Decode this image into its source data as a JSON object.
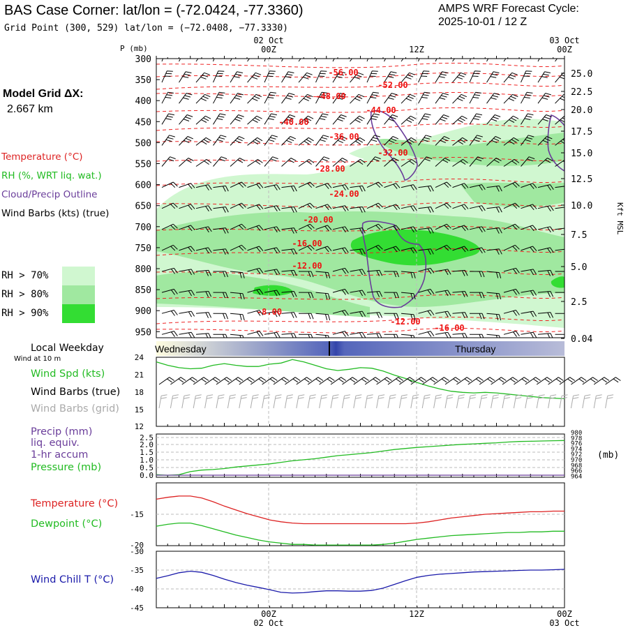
{
  "header": {
    "title": "BAS Case Corner:  lat/lon = (-72.0424, -77.3360)",
    "grid_point": "Grid Point (300, 529) lat/lon = (−72.0408, −77.3330)",
    "cycle_label": "AMPS WRF Forecast Cycle:",
    "cycle_value": "2025-10-01 / 12  Z",
    "model_grid_label": "Model Grid ΔX:",
    "model_grid_value": "2.667 km"
  },
  "time_axis": {
    "top_dates": [
      "02 Oct",
      "03 Oct"
    ],
    "bottom_dates": [
      "02 Oct",
      "03 Oct"
    ],
    "ticks": [
      "00Z",
      "12Z",
      "00Z"
    ]
  },
  "legend": {
    "temperature": "Temperature (°C)",
    "rh": "RH (%, WRT liq. wat.)",
    "cloud": "Cloud/Precip Outline",
    "wind_barbs": "Wind Barbs (kts) (true)",
    "rh_70": "RH > 70%",
    "rh_80": "RH > 80%",
    "rh_90": "RH > 90%",
    "rh_colors": [
      "#d0f7d0",
      "#a0e8a0",
      "#33dd33"
    ]
  },
  "weekday": {
    "label": "Local Weekday",
    "wind_note": "Wind at 10 m",
    "day1": "Wednesday",
    "day2": "Thursday"
  },
  "panel_labels": {
    "wind_spd": "Wind Spd (kts)",
    "barbs_true": "Wind Barbs (true)",
    "barbs_grid": "Wind Barbs (grid)",
    "precip": "Precip (mm)",
    "liq": "liq. equiv.",
    "accum": "1-hr accum",
    "pressure": "Pressure (mb)",
    "pressure_unit": "(mb)",
    "temperature": "Temperature (°C)",
    "dewpoint": "Dewpoint (°C)",
    "windchill": "Wind Chill T (°C)"
  },
  "colors": {
    "temperature": "#dd2222",
    "rh_green": "#22bb22",
    "cloud": "#6a3d9a",
    "windchill": "#1a1aaa",
    "grid_label": "#aaaaaa"
  },
  "chart_data": [
    {
      "type": "contour",
      "name": "cross_section",
      "y_axis_label": "P (mb)",
      "pressure_ticks": [
        "300",
        "350",
        "400",
        "450",
        "500",
        "550",
        "600",
        "650",
        "700",
        "750",
        "800",
        "850",
        "900",
        "950"
      ],
      "height_axis_label": "Kft MSL",
      "height_ticks": [
        "25.0",
        "22.5",
        "20.0",
        "17.5",
        "15.0",
        "12.5",
        "10.0",
        "7.5",
        "5.0",
        "2.5",
        "0.04"
      ],
      "temperature_contour_labels": [
        "-56.00",
        "-52.00",
        "-48.00",
        "-44.00",
        "-40.00",
        "-36.00",
        "-32.00",
        "-28.00",
        "-24.00",
        "-20.00",
        "-16.00",
        "-12.00",
        "-8.00",
        "-12.00",
        "-16.00"
      ]
    },
    {
      "type": "line",
      "name": "wind_speed",
      "ylim": [
        12,
        24
      ],
      "y_ticks": [
        "24",
        "21",
        "18",
        "15",
        "12"
      ],
      "x_hours": [
        0,
        1,
        2,
        3,
        4,
        5,
        6,
        7,
        8,
        9,
        10,
        11,
        12,
        13,
        14,
        15,
        16,
        17,
        18,
        19,
        20,
        21,
        22,
        23,
        24,
        25,
        26,
        27,
        28,
        29,
        30,
        31,
        32,
        33,
        34,
        35,
        36
      ],
      "values": [
        23.2,
        22.6,
        22.2,
        22.0,
        22.1,
        22.6,
        22.9,
        22.6,
        22.4,
        22.4,
        22.8,
        23.0,
        23.6,
        23.2,
        22.6,
        22.0,
        21.7,
        21.9,
        22.2,
        22.1,
        21.6,
        20.9,
        20.3,
        19.6,
        19.0,
        18.5,
        18.1,
        17.9,
        17.8,
        17.9,
        17.8,
        17.6,
        17.4,
        17.2,
        17.0,
        16.9,
        16.8
      ]
    },
    {
      "type": "line",
      "name": "precip_pressure",
      "precip_ticks": [
        "2.5",
        "2.0",
        "1.5",
        "1.0",
        "0.5",
        "0.0"
      ],
      "pressure_ticks": [
        "980",
        "978",
        "976",
        "974",
        "972",
        "970",
        "968",
        "966",
        "964"
      ],
      "pressure_ylim": [
        964,
        980
      ],
      "precip_values_mm": [
        0,
        0,
        0,
        0,
        0,
        0,
        0,
        0,
        0,
        0,
        0,
        0,
        0,
        0,
        0,
        0,
        0,
        0,
        0,
        0,
        0,
        0,
        0,
        0,
        0,
        0,
        0,
        0,
        0,
        0,
        0,
        0,
        0,
        0,
        0,
        0,
        0
      ],
      "pressure_values_mb": [
        965.0,
        964.8,
        965.0,
        966.2,
        966.8,
        967.0,
        967.4,
        968.0,
        968.4,
        968.8,
        969.2,
        969.8,
        970.4,
        970.8,
        971.2,
        971.8,
        972.4,
        972.8,
        973.2,
        973.6,
        974.2,
        974.8,
        975.2,
        975.6,
        975.9,
        976.2,
        976.5,
        976.8,
        977.0,
        977.2,
        977.4,
        977.7,
        977.9,
        978.0,
        978.1,
        978.2,
        978.3
      ]
    },
    {
      "type": "line",
      "name": "temperature_dewpoint",
      "ylim": [
        -20,
        -10
      ],
      "y_ticks": [
        "-15",
        "-20"
      ],
      "series": [
        {
          "name": "Temperature",
          "color": "#dd2222",
          "values": [
            -12.6,
            -12.3,
            -12.1,
            -12.1,
            -12.4,
            -13.0,
            -13.7,
            -14.3,
            -14.9,
            -15.4,
            -15.9,
            -16.2,
            -16.4,
            -16.5,
            -16.5,
            -16.5,
            -16.5,
            -16.5,
            -16.5,
            -16.5,
            -16.5,
            -16.5,
            -16.5,
            -16.4,
            -16.2,
            -15.9,
            -15.6,
            -15.4,
            -15.2,
            -15.0,
            -14.9,
            -14.8,
            -14.7,
            -14.6,
            -14.6,
            -14.5,
            -14.5
          ]
        },
        {
          "name": "Dewpoint",
          "color": "#22bb22",
          "values": [
            -16.9,
            -16.6,
            -16.4,
            -16.4,
            -16.8,
            -17.3,
            -17.8,
            -18.3,
            -18.7,
            -19.1,
            -19.4,
            -19.6,
            -19.8,
            -19.8,
            -19.9,
            -19.9,
            -19.9,
            -19.9,
            -19.9,
            -19.9,
            -19.8,
            -19.6,
            -19.3,
            -19.0,
            -18.8,
            -18.6,
            -18.4,
            -18.3,
            -18.2,
            -18.1,
            -18.0,
            -17.9,
            -17.9,
            -17.8,
            -17.8,
            -17.7,
            -17.7
          ]
        }
      ]
    },
    {
      "type": "line",
      "name": "wind_chill",
      "ylim": [
        -45,
        -30
      ],
      "y_ticks": [
        "-30",
        "-35",
        "-40",
        "-45"
      ],
      "values": [
        -37.2,
        -36.5,
        -35.7,
        -35.3,
        -35.6,
        -36.4,
        -37.4,
        -38.3,
        -39.0,
        -39.6,
        -40.2,
        -40.9,
        -41.1,
        -41.0,
        -40.7,
        -40.5,
        -40.5,
        -40.6,
        -40.6,
        -40.4,
        -39.8,
        -38.8,
        -37.8,
        -36.9,
        -36.4,
        -36.1,
        -35.9,
        -35.7,
        -35.5,
        -35.4,
        -35.3,
        -35.2,
        -35.1,
        -35.0,
        -35.0,
        -34.9,
        -34.8
      ]
    }
  ]
}
